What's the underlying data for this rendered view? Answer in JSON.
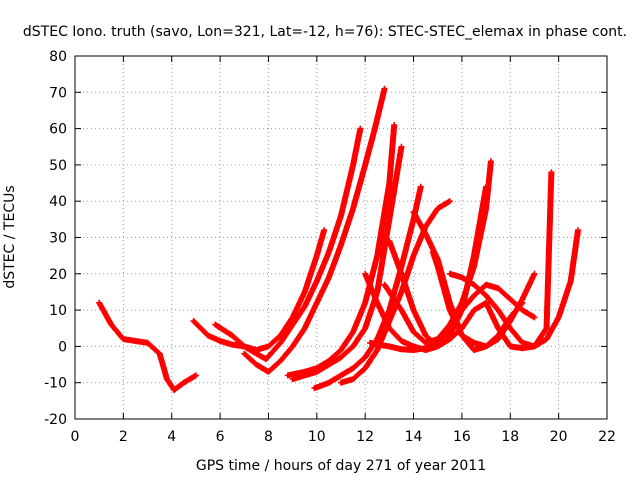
{
  "chart_data": {
    "type": "scatter",
    "title": "dSTEC Iono. truth (savo, Lon=321, Lat=-12, h=76): STEC-STEC_elemax in phase cont.",
    "xlabel": "GPS time / hours of day 271 of year 2011",
    "ylabel": "dSTEC  / TECUs",
    "xlim": [
      0,
      22
    ],
    "ylim": [
      -20,
      80
    ],
    "xticks": [
      0,
      2,
      4,
      6,
      8,
      10,
      12,
      14,
      16,
      18,
      20,
      22
    ],
    "yticks": [
      -20,
      -10,
      0,
      10,
      20,
      30,
      40,
      50,
      60,
      70,
      80
    ],
    "grid": true,
    "marker": "+",
    "color": "#ff0000",
    "series": [
      {
        "x": [
          1.0,
          1.5,
          2.0,
          2.5,
          3.0,
          3.5,
          3.8,
          4.0,
          4.1,
          4.5,
          5.0
        ],
        "y": [
          12,
          6,
          2,
          1.5,
          1,
          -2,
          -9,
          -11,
          -12,
          -10,
          -8
        ]
      },
      {
        "x": [
          4.9,
          5.5,
          6.0,
          6.5,
          7.0,
          7.5,
          8.0,
          8.5,
          9.0,
          9.5,
          10.0,
          10.3
        ],
        "y": [
          7,
          3,
          1.5,
          0.5,
          0,
          -1,
          0,
          3,
          8,
          15,
          25,
          32
        ]
      },
      {
        "x": [
          5.8,
          6.5,
          7.0,
          7.5,
          7.9,
          8.5,
          9.0,
          9.5,
          10.0,
          10.5,
          11.0,
          11.5,
          11.8
        ],
        "y": [
          6,
          3,
          0,
          -2,
          -3.5,
          1,
          6,
          11,
          18,
          26,
          36,
          50,
          60
        ]
      },
      {
        "x": [
          7.0,
          7.5,
          8.0,
          8.5,
          9.0,
          9.5,
          10.0,
          10.5,
          11.0,
          11.5,
          12.0,
          12.4,
          12.8
        ],
        "y": [
          -2,
          -5,
          -7,
          -4,
          0,
          5,
          12,
          19,
          28,
          38,
          50,
          60,
          71
        ]
      },
      {
        "x": [
          8.8,
          9.5,
          10.0,
          10.5,
          11.0,
          11.5,
          12.0,
          12.5,
          13.0,
          13.2
        ],
        "y": [
          -8,
          -7,
          -6,
          -4,
          -1,
          4,
          12,
          25,
          45,
          61
        ]
      },
      {
        "x": [
          9.0,
          9.5,
          10.0,
          10.5,
          11.0,
          11.5,
          12.0,
          12.5,
          13.0,
          13.5
        ],
        "y": [
          -9,
          -8,
          -7,
          -5,
          -3,
          0,
          5,
          15,
          35,
          55
        ]
      },
      {
        "x": [
          9.9,
          10.5,
          11.0,
          11.5,
          12.0,
          12.5,
          13.0,
          13.5,
          14.0,
          14.3
        ],
        "y": [
          -11.5,
          -10,
          -8,
          -6,
          -3,
          2,
          10,
          22,
          35,
          44
        ]
      },
      {
        "x": [
          11.0,
          11.5,
          12.0,
          12.5,
          13.0,
          13.5,
          14.0,
          14.5,
          15.0,
          15.5
        ],
        "y": [
          -10,
          -9,
          -6,
          -1,
          7,
          15,
          25,
          33,
          38,
          40
        ]
      },
      {
        "x": [
          12.0,
          12.5,
          13.0,
          13.5,
          14.0,
          14.5,
          15.0,
          15.5,
          16.0,
          16.5,
          17.0,
          17.5,
          18.0,
          18.5,
          19.0,
          19.5,
          19.7
        ],
        "y": [
          20,
          12,
          5,
          1.5,
          0,
          -1,
          0,
          2,
          5,
          10,
          12,
          5,
          0,
          -0.5,
          0,
          5,
          48
        ]
      },
      {
        "x": [
          12.2,
          12.5,
          13.0,
          13.5,
          14.0,
          14.5,
          15.0,
          15.5,
          16.0,
          16.5,
          17.0,
          17.5,
          18.0,
          18.5,
          19.0
        ],
        "y": [
          1,
          0.5,
          0,
          -0.8,
          -1,
          -0.5,
          1,
          5,
          10,
          14,
          17,
          16,
          13,
          10,
          8
        ]
      },
      {
        "x": [
          12.8,
          13.0,
          13.5,
          14.0,
          14.5,
          15.0,
          15.5,
          16.0,
          16.5,
          17.0,
          17.2
        ],
        "y": [
          17,
          15,
          10,
          4,
          1,
          2,
          6,
          12,
          22,
          38,
          51
        ]
      },
      {
        "x": [
          13.0,
          13.5,
          14.0,
          14.5,
          15.0,
          15.5,
          16.0,
          16.5,
          17.0
        ],
        "y": [
          29,
          20,
          10,
          3,
          0,
          3,
          10,
          25,
          44
        ]
      },
      {
        "x": [
          14.0,
          14.5,
          15.0,
          15.5,
          16.0,
          16.5,
          17.0,
          17.5,
          18.0,
          18.5
        ],
        "y": [
          37,
          31,
          24,
          12,
          3,
          -1,
          0,
          3,
          8,
          12
        ]
      },
      {
        "x": [
          15.5,
          16.0,
          16.5,
          17.0,
          17.5,
          18.0,
          18.5,
          19.0,
          19.5,
          20.0,
          20.5,
          20.8
        ],
        "y": [
          20,
          19,
          17,
          14,
          10,
          5,
          1,
          0,
          2,
          8,
          18,
          32
        ]
      },
      {
        "x": [
          14.8,
          15.0,
          15.5,
          16.0,
          16.5,
          17.0,
          17.5,
          18.0,
          18.5,
          19.0
        ],
        "y": [
          26,
          22,
          10,
          3,
          1,
          0,
          2,
          7,
          13,
          20
        ]
      }
    ]
  }
}
